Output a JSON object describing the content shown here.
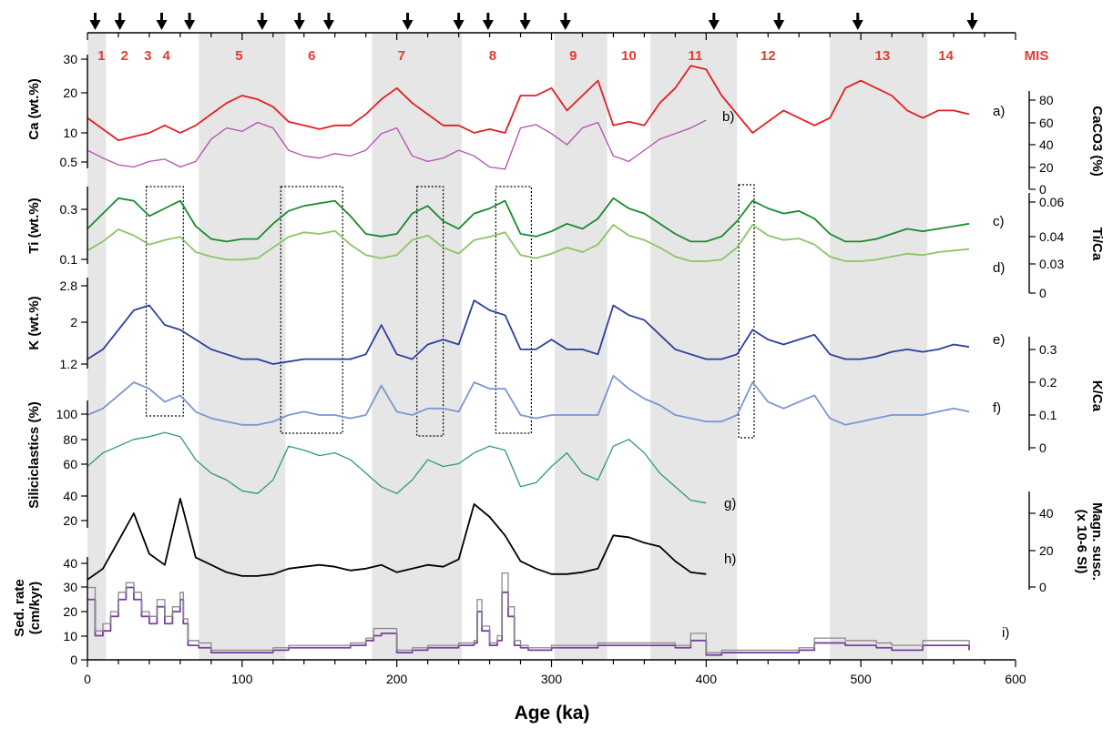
{
  "chart_data": {
    "type": "line",
    "xlabel": "Age (ka)",
    "xlim": [
      0,
      600
    ],
    "xticks": [
      "0",
      "100",
      "200",
      "300",
      "400",
      "500",
      "600"
    ],
    "colors": {
      "ca": "#e31e24",
      "caco3": "#b04fb0",
      "ti": "#1a8a2e",
      "tica": "#8cc563",
      "k": "#2b3f9e",
      "kca": "#7b96d1",
      "sil": "#2e9e6a",
      "mag": "#000000",
      "sed1": "#7a3fa0",
      "sed2": "#8a8a8a",
      "mis_text": "#e43b33",
      "band": "#e6e6e6"
    },
    "mis": {
      "header": "MIS",
      "labels": [
        "1",
        "2",
        "3",
        "4",
        "5",
        "6",
        "7",
        "8",
        "9",
        "10",
        "11",
        "12",
        "13",
        "14"
      ],
      "label_ages": [
        9,
        24,
        39,
        51,
        98,
        145,
        203,
        262,
        314,
        350,
        393,
        440,
        514,
        555
      ],
      "shaded_bands": [
        [
          0,
          12
        ],
        [
          72,
          128
        ],
        [
          184,
          242
        ],
        [
          302,
          336
        ],
        [
          364,
          420
        ],
        [
          480,
          543
        ]
      ]
    },
    "tie_point_arrows_ka": [
      5,
      21,
      48,
      66,
      113,
      137,
      156,
      207,
      240,
      259,
      283,
      309,
      405,
      447,
      498,
      572
    ],
    "dotted_boxes_ka": [
      [
        38,
        62
      ],
      [
        125,
        165
      ],
      [
        213,
        230
      ],
      [
        264,
        287
      ],
      [
        421,
        431
      ]
    ],
    "panel_labels": [
      "a)",
      "b)",
      "c)",
      "d)",
      "e)",
      "f)",
      "g)",
      "h)",
      "i)"
    ],
    "left_axes": [
      {
        "label": "Ca (wt.%)",
        "ticks": [
          "30",
          "20",
          "10",
          "0.5"
        ]
      },
      {
        "label": "Ti (wt.%)",
        "ticks": [
          "0.3",
          "0.1"
        ]
      },
      {
        "label": "K (wt.%)",
        "ticks": [
          "2.8",
          "2",
          "1.2"
        ]
      },
      {
        "label": "Siliciclastics (%)",
        "ticks": [
          "100",
          "80",
          "60",
          "40",
          "20"
        ]
      },
      {
        "label": "Sed. rate",
        "label2": "(cm/kyr)",
        "ticks": [
          "40",
          "30",
          "20",
          "10",
          "0"
        ]
      }
    ],
    "right_axes": [
      {
        "label": "CaCO3 (%)",
        "ticks": [
          "80",
          "60",
          "40",
          "20",
          "0"
        ]
      },
      {
        "label": "Ti/Ca",
        "ticks": [
          "0.06",
          "0.04",
          "0.03",
          "0"
        ]
      },
      {
        "label": "K/Ca",
        "ticks": [
          "0.3",
          "0.2",
          "0.1",
          "0"
        ]
      },
      {
        "label": "Magn. susc.",
        "label2": "(x 10-6 SI)",
        "ticks": [
          "40",
          "20",
          "0"
        ]
      }
    ],
    "series": [
      {
        "name": "Ca (wt.%)",
        "key": "ca",
        "x": [
          0,
          10,
          20,
          30,
          40,
          50,
          60,
          70,
          80,
          90,
          100,
          110,
          120,
          130,
          140,
          150,
          160,
          170,
          180,
          190,
          200,
          210,
          220,
          230,
          240,
          250,
          260,
          270,
          280,
          290,
          300,
          310,
          320,
          330,
          340,
          350,
          360,
          370,
          380,
          390,
          400,
          410,
          420,
          430,
          440,
          450,
          460,
          470,
          480,
          490,
          500,
          510,
          520,
          530,
          540,
          550,
          560,
          570
        ],
        "y": [
          14,
          11,
          8,
          9,
          10,
          12,
          10,
          12,
          15,
          18,
          20,
          19,
          17,
          13,
          12,
          11,
          12,
          12,
          15,
          19,
          22,
          18,
          15,
          12,
          12,
          10,
          11,
          10,
          20,
          20,
          22,
          16,
          20,
          24,
          12,
          13,
          12,
          18,
          22,
          28,
          27,
          20,
          15,
          10,
          13,
          16,
          14,
          12,
          14,
          22,
          24,
          22,
          20,
          16,
          14,
          16,
          16,
          15
        ]
      },
      {
        "name": "CaCO3 (%)",
        "key": "caco3",
        "x": [
          0,
          10,
          20,
          30,
          40,
          50,
          60,
          70,
          80,
          90,
          100,
          110,
          120,
          130,
          140,
          150,
          160,
          170,
          180,
          190,
          200,
          210,
          220,
          230,
          240,
          250,
          260,
          270,
          280,
          290,
          300,
          310,
          320,
          330,
          340,
          350,
          360,
          370,
          380,
          390,
          400
        ],
        "y": [
          35,
          28,
          22,
          20,
          25,
          27,
          20,
          25,
          45,
          55,
          52,
          60,
          55,
          35,
          30,
          28,
          32,
          30,
          35,
          50,
          55,
          30,
          25,
          28,
          35,
          30,
          20,
          18,
          55,
          58,
          50,
          40,
          55,
          60,
          30,
          25,
          35,
          45,
          50,
          55,
          62
        ]
      },
      {
        "name": "Ti (wt.%)",
        "key": "ti",
        "x": [
          0,
          10,
          20,
          30,
          40,
          50,
          60,
          70,
          80,
          90,
          100,
          110,
          120,
          130,
          140,
          150,
          160,
          170,
          180,
          190,
          200,
          210,
          220,
          230,
          240,
          250,
          260,
          270,
          280,
          290,
          300,
          310,
          320,
          330,
          340,
          350,
          360,
          370,
          380,
          390,
          400,
          410,
          420,
          430,
          440,
          450,
          460,
          470,
          480,
          490,
          500,
          510,
          520,
          530,
          540,
          550,
          560,
          570
        ],
        "y": [
          0.22,
          0.28,
          0.34,
          0.33,
          0.27,
          0.3,
          0.33,
          0.23,
          0.18,
          0.17,
          0.18,
          0.18,
          0.24,
          0.29,
          0.31,
          0.32,
          0.33,
          0.27,
          0.2,
          0.19,
          0.2,
          0.28,
          0.31,
          0.25,
          0.22,
          0.28,
          0.3,
          0.33,
          0.2,
          0.19,
          0.21,
          0.24,
          0.22,
          0.26,
          0.34,
          0.3,
          0.28,
          0.24,
          0.2,
          0.17,
          0.17,
          0.19,
          0.25,
          0.33,
          0.3,
          0.28,
          0.29,
          0.26,
          0.2,
          0.17,
          0.17,
          0.18,
          0.2,
          0.22,
          0.21,
          0.22,
          0.23,
          0.24
        ]
      },
      {
        "name": "Ti/Ca",
        "key": "tica",
        "x": [
          0,
          10,
          20,
          30,
          40,
          50,
          60,
          70,
          80,
          90,
          100,
          110,
          120,
          130,
          140,
          150,
          160,
          170,
          180,
          190,
          200,
          210,
          220,
          230,
          240,
          250,
          260,
          270,
          280,
          290,
          300,
          310,
          320,
          330,
          340,
          350,
          360,
          370,
          380,
          390,
          400,
          410,
          420,
          430,
          440,
          450,
          460,
          470,
          480,
          490,
          500,
          510,
          520,
          530,
          540,
          550,
          560,
          570
        ],
        "y": [
          0.028,
          0.034,
          0.042,
          0.038,
          0.032,
          0.035,
          0.037,
          0.027,
          0.024,
          0.022,
          0.022,
          0.023,
          0.03,
          0.037,
          0.04,
          0.039,
          0.041,
          0.032,
          0.025,
          0.023,
          0.025,
          0.035,
          0.038,
          0.03,
          0.026,
          0.035,
          0.037,
          0.04,
          0.025,
          0.023,
          0.026,
          0.03,
          0.027,
          0.032,
          0.045,
          0.038,
          0.035,
          0.03,
          0.024,
          0.021,
          0.021,
          0.022,
          0.03,
          0.045,
          0.038,
          0.035,
          0.036,
          0.032,
          0.024,
          0.021,
          0.021,
          0.022,
          0.024,
          0.026,
          0.025,
          0.027,
          0.028,
          0.029
        ]
      },
      {
        "name": "K (wt.%)",
        "key": "k",
        "x": [
          0,
          10,
          20,
          30,
          40,
          50,
          60,
          70,
          80,
          90,
          100,
          110,
          120,
          130,
          140,
          150,
          160,
          170,
          180,
          190,
          200,
          210,
          220,
          230,
          240,
          250,
          260,
          270,
          280,
          290,
          300,
          310,
          320,
          330,
          340,
          350,
          360,
          370,
          380,
          390,
          400,
          410,
          420,
          430,
          440,
          450,
          460,
          470,
          480,
          490,
          500,
          510,
          520,
          530,
          540,
          550,
          560,
          570
        ],
        "y": [
          1.3,
          1.5,
          1.9,
          2.3,
          2.4,
          2.0,
          1.9,
          1.7,
          1.5,
          1.4,
          1.3,
          1.3,
          1.2,
          1.25,
          1.3,
          1.3,
          1.3,
          1.3,
          1.4,
          2.0,
          1.4,
          1.3,
          1.6,
          1.7,
          1.6,
          2.5,
          2.3,
          2.2,
          1.5,
          1.5,
          1.7,
          1.5,
          1.5,
          1.4,
          2.4,
          2.2,
          2.1,
          1.8,
          1.5,
          1.4,
          1.3,
          1.3,
          1.4,
          1.9,
          1.7,
          1.6,
          1.7,
          1.8,
          1.4,
          1.3,
          1.3,
          1.35,
          1.45,
          1.5,
          1.45,
          1.5,
          1.6,
          1.55
        ]
      },
      {
        "name": "K/Ca",
        "key": "kca",
        "x": [
          0,
          10,
          20,
          30,
          40,
          50,
          60,
          70,
          80,
          90,
          100,
          110,
          120,
          130,
          140,
          150,
          160,
          170,
          180,
          190,
          200,
          210,
          220,
          230,
          240,
          250,
          260,
          270,
          280,
          290,
          300,
          310,
          320,
          330,
          340,
          350,
          360,
          370,
          380,
          390,
          400,
          410,
          420,
          430,
          440,
          450,
          460,
          470,
          480,
          490,
          500,
          510,
          520,
          530,
          540,
          550,
          560,
          570
        ],
        "y": [
          0.1,
          0.12,
          0.16,
          0.2,
          0.18,
          0.14,
          0.16,
          0.11,
          0.09,
          0.08,
          0.07,
          0.07,
          0.08,
          0.1,
          0.11,
          0.1,
          0.1,
          0.09,
          0.1,
          0.19,
          0.11,
          0.1,
          0.12,
          0.12,
          0.11,
          0.2,
          0.18,
          0.18,
          0.1,
          0.09,
          0.1,
          0.1,
          0.1,
          0.1,
          0.22,
          0.18,
          0.15,
          0.13,
          0.1,
          0.09,
          0.08,
          0.08,
          0.1,
          0.2,
          0.14,
          0.12,
          0.14,
          0.16,
          0.09,
          0.07,
          0.08,
          0.09,
          0.1,
          0.1,
          0.1,
          0.11,
          0.12,
          0.11
        ]
      },
      {
        "name": "Siliciclastics (%)",
        "key": "sil",
        "x": [
          0,
          10,
          20,
          30,
          40,
          50,
          60,
          70,
          80,
          90,
          100,
          110,
          120,
          130,
          140,
          150,
          160,
          170,
          180,
          190,
          200,
          210,
          220,
          230,
          240,
          250,
          260,
          270,
          280,
          290,
          300,
          310,
          320,
          330,
          340,
          350,
          360,
          370,
          380,
          390,
          400
        ],
        "y": [
          60,
          70,
          75,
          80,
          82,
          85,
          82,
          65,
          55,
          50,
          42,
          40,
          50,
          75,
          72,
          68,
          70,
          65,
          55,
          45,
          40,
          50,
          65,
          60,
          62,
          70,
          75,
          72,
          45,
          48,
          60,
          70,
          55,
          50,
          75,
          80,
          70,
          55,
          45,
          35,
          33
        ]
      },
      {
        "name": "Magn. susc.",
        "key": "mag",
        "x": [
          0,
          10,
          20,
          30,
          40,
          50,
          60,
          70,
          80,
          90,
          100,
          110,
          120,
          130,
          140,
          150,
          160,
          170,
          180,
          190,
          200,
          210,
          220,
          230,
          240,
          250,
          260,
          270,
          280,
          290,
          300,
          310,
          320,
          330,
          340,
          350,
          360,
          370,
          380,
          390,
          400
        ],
        "y": [
          4,
          10,
          25,
          40,
          18,
          12,
          48,
          16,
          12,
          8,
          6,
          6,
          7,
          10,
          11,
          12,
          11,
          9,
          10,
          12,
          8,
          10,
          12,
          11,
          15,
          45,
          38,
          28,
          14,
          10,
          7,
          7,
          8,
          10,
          28,
          27,
          24,
          22,
          14,
          8,
          7
        ]
      },
      {
        "name": "Sed. rate",
        "key": "sed1",
        "x": [
          0,
          5,
          10,
          15,
          20,
          25,
          30,
          35,
          40,
          45,
          50,
          55,
          60,
          62,
          65,
          72,
          80,
          90,
          100,
          120,
          130,
          150,
          170,
          180,
          185,
          190,
          200,
          210,
          220,
          240,
          250,
          252,
          255,
          260,
          265,
          268,
          272,
          276,
          280,
          285,
          300,
          330,
          360,
          380,
          390,
          400,
          410,
          430,
          460,
          470,
          490,
          510,
          520,
          540,
          570
        ],
        "y": [
          25,
          10,
          12,
          18,
          25,
          30,
          25,
          18,
          15,
          22,
          15,
          20,
          25,
          15,
          6,
          5,
          3,
          3,
          3,
          4,
          5,
          5,
          6,
          8,
          10,
          11,
          3,
          4,
          5,
          6,
          7,
          20,
          12,
          6,
          8,
          28,
          18,
          6,
          5,
          4,
          5,
          6,
          6,
          5,
          8,
          2,
          3,
          3,
          4,
          7,
          6,
          5,
          4,
          6,
          4
        ]
      },
      {
        "name": "Sed. rate (gray)",
        "key": "sed2",
        "x": [
          0,
          5,
          10,
          15,
          20,
          25,
          30,
          35,
          40,
          45,
          50,
          55,
          60,
          62,
          65,
          72,
          80,
          90,
          100,
          120,
          130,
          150,
          170,
          180,
          185,
          190,
          200,
          210,
          220,
          240,
          250,
          252,
          255,
          260,
          265,
          268,
          272,
          276,
          280,
          285,
          300,
          330,
          360,
          380,
          390,
          400,
          410,
          430,
          460,
          470,
          490,
          510,
          520,
          540,
          570
        ],
        "y": [
          30,
          12,
          15,
          20,
          28,
          32,
          28,
          20,
          18,
          25,
          18,
          22,
          28,
          17,
          8,
          7,
          4,
          4,
          4,
          5,
          6,
          6,
          7,
          9,
          13,
          13,
          4,
          5,
          6,
          7,
          8,
          25,
          14,
          7,
          10,
          36,
          22,
          8,
          6,
          5,
          6,
          7,
          7,
          6,
          11,
          3,
          4,
          4,
          5,
          9,
          8,
          7,
          6,
          8,
          6
        ]
      }
    ]
  }
}
